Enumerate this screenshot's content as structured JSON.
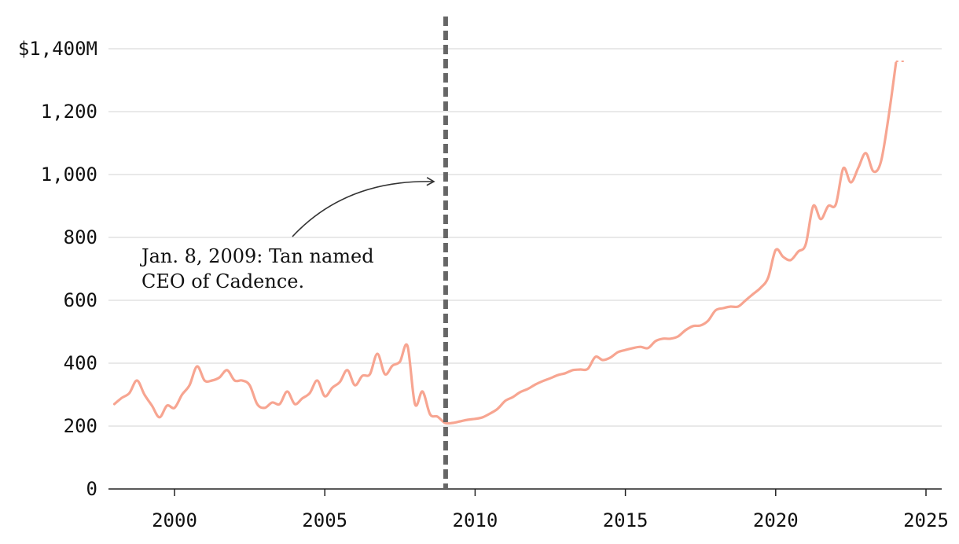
{
  "chart_data": {
    "type": "line",
    "title": "",
    "xlabel": "",
    "ylabel": "",
    "ylim": [
      0,
      1400
    ],
    "xlim": [
      1998.0,
      2025.6
    ],
    "grid": true,
    "y_ticks": [
      {
        "value": 0,
        "label": "0"
      },
      {
        "value": 200,
        "label": "200"
      },
      {
        "value": 400,
        "label": "400"
      },
      {
        "value": 600,
        "label": "600"
      },
      {
        "value": 800,
        "label": "800"
      },
      {
        "value": 1000,
        "label": "1,000"
      },
      {
        "value": 1200,
        "label": "1,200"
      },
      {
        "value": 1400,
        "label": "$1,400M"
      }
    ],
    "x_ticks": [
      {
        "value": 2000,
        "label": "2000"
      },
      {
        "value": 2005,
        "label": "2005"
      },
      {
        "value": 2010,
        "label": "2010"
      },
      {
        "value": 2015,
        "label": "2015"
      },
      {
        "value": 2020,
        "label": "2020"
      },
      {
        "value": 2025,
        "label": "2025"
      }
    ],
    "series": [
      {
        "color": "#f7a591",
        "points": [
          [
            1998.0,
            270
          ],
          [
            1998.25,
            290
          ],
          [
            1998.5,
            305
          ],
          [
            1998.75,
            345
          ],
          [
            1999.0,
            300
          ],
          [
            1999.25,
            265
          ],
          [
            1999.5,
            228
          ],
          [
            1999.75,
            265
          ],
          [
            2000.0,
            258
          ],
          [
            2000.25,
            300
          ],
          [
            2000.5,
            330
          ],
          [
            2000.75,
            390
          ],
          [
            2001.0,
            345
          ],
          [
            2001.25,
            345
          ],
          [
            2001.5,
            355
          ],
          [
            2001.75,
            378
          ],
          [
            2002.0,
            345
          ],
          [
            2002.25,
            345
          ],
          [
            2002.5,
            330
          ],
          [
            2002.75,
            270
          ],
          [
            2003.0,
            258
          ],
          [
            2003.25,
            275
          ],
          [
            2003.5,
            270
          ],
          [
            2003.75,
            310
          ],
          [
            2004.0,
            270
          ],
          [
            2004.25,
            288
          ],
          [
            2004.5,
            305
          ],
          [
            2004.75,
            345
          ],
          [
            2005.0,
            295
          ],
          [
            2005.25,
            322
          ],
          [
            2005.5,
            340
          ],
          [
            2005.75,
            378
          ],
          [
            2006.0,
            330
          ],
          [
            2006.25,
            360
          ],
          [
            2006.5,
            365
          ],
          [
            2006.75,
            430
          ],
          [
            2007.0,
            365
          ],
          [
            2007.25,
            392
          ],
          [
            2007.5,
            405
          ],
          [
            2007.75,
            455
          ],
          [
            2008.0,
            270
          ],
          [
            2008.25,
            310
          ],
          [
            2008.5,
            238
          ],
          [
            2008.75,
            230
          ],
          [
            2009.0,
            210
          ],
          [
            2009.25,
            210
          ],
          [
            2009.5,
            215
          ],
          [
            2009.75,
            220
          ],
          [
            2010.0,
            223
          ],
          [
            2010.25,
            228
          ],
          [
            2010.5,
            240
          ],
          [
            2010.75,
            255
          ],
          [
            2011.0,
            280
          ],
          [
            2011.25,
            292
          ],
          [
            2011.5,
            308
          ],
          [
            2011.75,
            318
          ],
          [
            2012.0,
            332
          ],
          [
            2012.25,
            343
          ],
          [
            2012.5,
            352
          ],
          [
            2012.75,
            362
          ],
          [
            2013.0,
            368
          ],
          [
            2013.25,
            378
          ],
          [
            2013.5,
            380
          ],
          [
            2013.75,
            382
          ],
          [
            2014.0,
            420
          ],
          [
            2014.25,
            410
          ],
          [
            2014.5,
            418
          ],
          [
            2014.75,
            435
          ],
          [
            2015.0,
            442
          ],
          [
            2015.25,
            448
          ],
          [
            2015.5,
            452
          ],
          [
            2015.75,
            448
          ],
          [
            2016.0,
            470
          ],
          [
            2016.25,
            478
          ],
          [
            2016.5,
            478
          ],
          [
            2016.75,
            485
          ],
          [
            2017.0,
            505
          ],
          [
            2017.25,
            518
          ],
          [
            2017.5,
            520
          ],
          [
            2017.75,
            535
          ],
          [
            2018.0,
            568
          ],
          [
            2018.25,
            575
          ],
          [
            2018.5,
            580
          ],
          [
            2018.75,
            580
          ],
          [
            2019.0,
            600
          ],
          [
            2019.25,
            620
          ],
          [
            2019.5,
            640
          ],
          [
            2019.75,
            672
          ],
          [
            2020.0,
            760
          ],
          [
            2020.25,
            738
          ],
          [
            2020.5,
            728
          ],
          [
            2020.75,
            755
          ],
          [
            2021.0,
            778
          ],
          [
            2021.25,
            900
          ],
          [
            2021.5,
            858
          ],
          [
            2021.75,
            900
          ],
          [
            2022.0,
            905
          ],
          [
            2022.25,
            1020
          ],
          [
            2022.5,
            975
          ],
          [
            2022.75,
            1022
          ],
          [
            2023.0,
            1068
          ],
          [
            2023.25,
            1010
          ],
          [
            2023.5,
            1040
          ],
          [
            2023.75,
            1180
          ],
          [
            2024.0,
            1355
          ]
        ]
      }
    ],
    "projection": {
      "color": "#f7a591",
      "points": [
        [
          2024.0,
          1360
        ],
        [
          2024.35,
          1360
        ]
      ]
    },
    "event_marker": {
      "x": 2009.02,
      "color": "#666666"
    },
    "annotation": {
      "lines": [
        "Jan. 8, 2009: Tan named",
        "CEO of Cadence."
      ]
    }
  }
}
